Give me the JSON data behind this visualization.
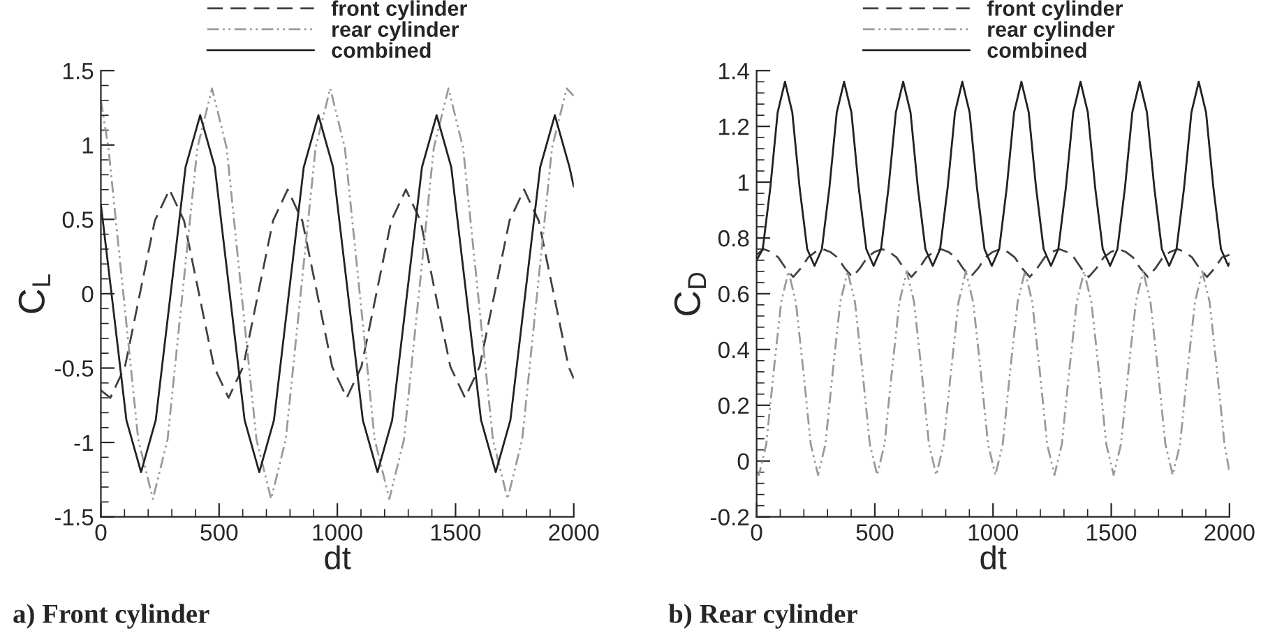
{
  "chart_data": [
    {
      "type": "line",
      "title": "a) Front cylinder",
      "xlabel": "dt",
      "ylabel": "C$_{L}$",
      "xlim": [
        0,
        2000
      ],
      "xticks": [
        0,
        500,
        1000,
        1500,
        2000
      ],
      "ylim": [
        -1.5,
        1.5
      ],
      "yticks": [
        -1.5,
        -1,
        -0.5,
        0,
        0.5,
        1,
        1.5
      ],
      "grid": false,
      "legend": "top",
      "series": [
        {
          "name": "front cylinder",
          "color": "#404040",
          "line_style": "dashed",
          "x": [
            0,
            40,
            102,
            165,
            228,
            290,
            352,
            415,
            478,
            540,
            602,
            665,
            728,
            790,
            852,
            915,
            978,
            1040,
            1102,
            1165,
            1228,
            1290,
            1352,
            1415,
            1478,
            1540,
            1602,
            1665,
            1728,
            1790,
            1852,
            1915,
            1978,
            2000
          ],
          "values": [
            -0.65,
            -0.7,
            -0.49,
            0,
            0.49,
            0.7,
            0.49,
            0,
            -0.49,
            -0.7,
            -0.49,
            0,
            0.49,
            0.7,
            0.49,
            0,
            -0.49,
            -0.7,
            -0.49,
            0,
            0.49,
            0.7,
            0.49,
            0,
            -0.49,
            -0.7,
            -0.49,
            0,
            0.49,
            0.7,
            0.49,
            0,
            -0.49,
            -0.57
          ]
        },
        {
          "name": "rear cylinder",
          "color": "#9a9a9a",
          "line_style": "dashdotdot",
          "x": [
            0,
            32,
            95,
            158,
            220,
            282,
            345,
            408,
            470,
            532,
            595,
            658,
            720,
            782,
            845,
            908,
            970,
            1032,
            1095,
            1158,
            1220,
            1282,
            1345,
            1408,
            1470,
            1532,
            1595,
            1658,
            1720,
            1782,
            1845,
            1908,
            1970,
            2000
          ],
          "values": [
            1.3,
            0.98,
            0,
            -0.98,
            -1.38,
            -0.98,
            0,
            0.98,
            1.38,
            0.98,
            0,
            -0.98,
            -1.38,
            -0.98,
            0,
            0.98,
            1.38,
            0.98,
            0,
            -0.98,
            -1.38,
            -0.98,
            0,
            0.98,
            1.38,
            0.98,
            0,
            -0.98,
            -1.38,
            -0.98,
            0,
            0.98,
            1.38,
            1.33
          ]
        },
        {
          "name": "combined",
          "color": "#222222",
          "line_style": "solid",
          "x": [
            0,
            45,
            108,
            170,
            232,
            295,
            358,
            420,
            482,
            545,
            608,
            670,
            732,
            795,
            858,
            920,
            982,
            1045,
            1108,
            1170,
            1232,
            1295,
            1358,
            1420,
            1482,
            1545,
            1608,
            1670,
            1732,
            1795,
            1858,
            1920,
            1982,
            2000
          ],
          "values": [
            0.6,
            0,
            -0.85,
            -1.2,
            -0.85,
            0,
            0.85,
            1.2,
            0.85,
            0,
            -0.85,
            -1.2,
            -0.85,
            0,
            0.85,
            1.2,
            0.85,
            0,
            -0.85,
            -1.2,
            -0.85,
            0,
            0.85,
            1.2,
            0.85,
            0,
            -0.85,
            -1.2,
            -0.85,
            0,
            0.85,
            1.2,
            0.85,
            0.72
          ]
        }
      ]
    },
    {
      "type": "line",
      "title": "b) Rear cylinder",
      "xlabel": "dt",
      "ylabel": "C$_{D}$",
      "xlim": [
        0,
        2000
      ],
      "xticks": [
        0,
        500,
        1000,
        1500,
        2000
      ],
      "ylim": [
        -0.2,
        1.4
      ],
      "yticks": [
        -0.2,
        0,
        0.2,
        0.4,
        0.6,
        0.8,
        1,
        1.2,
        1.4
      ],
      "grid": false,
      "legend": "top",
      "series": [
        {
          "name": "front cylinder",
          "color": "#404040",
          "line_style": "dashed",
          "x": [
            0,
            30,
            61,
            92,
            124,
            155,
            186,
            218,
            249,
            280,
            311,
            342,
            374,
            405,
            436,
            468,
            499,
            530,
            561,
            592,
            624,
            655,
            686,
            718,
            749,
            780,
            811,
            842,
            874,
            905,
            936,
            968,
            999,
            1030,
            1061,
            1092,
            1124,
            1155,
            1186,
            1218,
            1249,
            1280,
            1311,
            1342,
            1374,
            1405,
            1436,
            1468,
            1499,
            1530,
            1561,
            1592,
            1624,
            1655,
            1686,
            1718,
            1749,
            1780,
            1811,
            1842,
            1874,
            1905,
            1936,
            1968,
            2000
          ],
          "values": [
            0.74,
            0.76,
            0.75,
            0.73,
            0.69,
            0.66,
            0.69,
            0.73,
            0.75,
            0.76,
            0.75,
            0.73,
            0.69,
            0.66,
            0.69,
            0.73,
            0.75,
            0.76,
            0.75,
            0.73,
            0.69,
            0.66,
            0.69,
            0.73,
            0.75,
            0.76,
            0.75,
            0.73,
            0.69,
            0.66,
            0.69,
            0.73,
            0.75,
            0.76,
            0.75,
            0.73,
            0.69,
            0.66,
            0.69,
            0.73,
            0.75,
            0.76,
            0.75,
            0.73,
            0.69,
            0.66,
            0.69,
            0.73,
            0.75,
            0.76,
            0.75,
            0.73,
            0.69,
            0.66,
            0.69,
            0.73,
            0.75,
            0.76,
            0.75,
            0.73,
            0.69,
            0.66,
            0.69,
            0.73,
            0.74
          ]
        },
        {
          "name": "rear cylinder",
          "color": "#9a9a9a",
          "line_style": "dashdotdot",
          "x": [
            0,
            10,
            41,
            72,
            104,
            135,
            166,
            198,
            229,
            260,
            291,
            322,
            354,
            385,
            416,
            448,
            479,
            510,
            541,
            572,
            604,
            635,
            666,
            698,
            729,
            760,
            791,
            822,
            854,
            885,
            916,
            948,
            979,
            1010,
            1041,
            1072,
            1104,
            1135,
            1166,
            1198,
            1229,
            1260,
            1291,
            1322,
            1354,
            1385,
            1416,
            1448,
            1479,
            1510,
            1541,
            1572,
            1604,
            1635,
            1666,
            1698,
            1729,
            1760,
            1791,
            1822,
            1854,
            1885,
            1916,
            1948,
            1979,
            2000
          ],
          "values": [
            -0.04,
            -0.05,
            0.06,
            0.32,
            0.57,
            0.68,
            0.57,
            0.32,
            0.06,
            -0.05,
            0.06,
            0.32,
            0.57,
            0.68,
            0.57,
            0.32,
            0.06,
            -0.05,
            0.06,
            0.32,
            0.57,
            0.68,
            0.57,
            0.32,
            0.06,
            -0.05,
            0.06,
            0.32,
            0.57,
            0.68,
            0.57,
            0.32,
            0.06,
            -0.05,
            0.06,
            0.32,
            0.57,
            0.68,
            0.57,
            0.32,
            0.06,
            -0.05,
            0.06,
            0.32,
            0.57,
            0.68,
            0.57,
            0.32,
            0.06,
            -0.05,
            0.06,
            0.32,
            0.57,
            0.68,
            0.57,
            0.32,
            0.06,
            -0.05,
            0.06,
            0.32,
            0.57,
            0.68,
            0.57,
            0.32,
            0.06,
            -0.04
          ]
        },
        {
          "name": "combined",
          "color": "#222222",
          "line_style": "solid",
          "x": [
            0,
            26,
            58,
            89,
            120,
            151,
            182,
            214,
            245,
            276,
            308,
            339,
            370,
            401,
            432,
            464,
            495,
            526,
            558,
            589,
            620,
            651,
            682,
            714,
            745,
            776,
            808,
            839,
            870,
            901,
            932,
            964,
            995,
            1026,
            1058,
            1089,
            1120,
            1151,
            1182,
            1214,
            1245,
            1276,
            1308,
            1339,
            1370,
            1401,
            1432,
            1464,
            1495,
            1526,
            1558,
            1589,
            1620,
            1651,
            1682,
            1714,
            1745,
            1776,
            1808,
            1839,
            1870,
            1901,
            1932,
            1964,
            1995,
            2000
          ],
          "values": [
            0.72,
            0.76,
            0.98,
            1.25,
            1.36,
            1.25,
            0.98,
            0.76,
            0.7,
            0.76,
            0.98,
            1.25,
            1.36,
            1.25,
            0.98,
            0.76,
            0.7,
            0.76,
            0.98,
            1.25,
            1.36,
            1.25,
            0.98,
            0.76,
            0.7,
            0.76,
            0.98,
            1.25,
            1.36,
            1.25,
            0.98,
            0.76,
            0.7,
            0.76,
            0.98,
            1.25,
            1.36,
            1.25,
            0.98,
            0.76,
            0.7,
            0.76,
            0.98,
            1.25,
            1.36,
            1.25,
            0.98,
            0.76,
            0.7,
            0.76,
            0.98,
            1.25,
            1.36,
            1.25,
            0.98,
            0.76,
            0.7,
            0.76,
            0.98,
            1.25,
            1.36,
            1.25,
            0.98,
            0.76,
            0.7,
            0.71
          ]
        }
      ]
    }
  ]
}
